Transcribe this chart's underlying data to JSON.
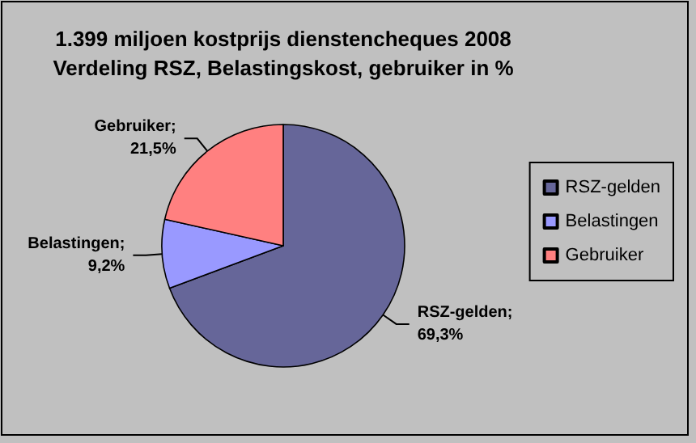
{
  "chart_data": {
    "type": "pie",
    "title": "1.399 miljoen kostprijs dienstencheques 2008\nVerdeling RSZ, Belastingskost, gebruiker in %",
    "categories": [
      "RSZ-gelden",
      "Belastingen",
      "Gebruiker"
    ],
    "values": [
      69.3,
      9.2,
      21.5
    ],
    "colors": [
      "#666699",
      "#9999ff",
      "#ff8080"
    ],
    "value_labels": [
      "RSZ-gelden; 69,3%",
      "Belastingen; 9,2%",
      "Gebruiker; 21,5%"
    ],
    "legend": "right"
  }
}
